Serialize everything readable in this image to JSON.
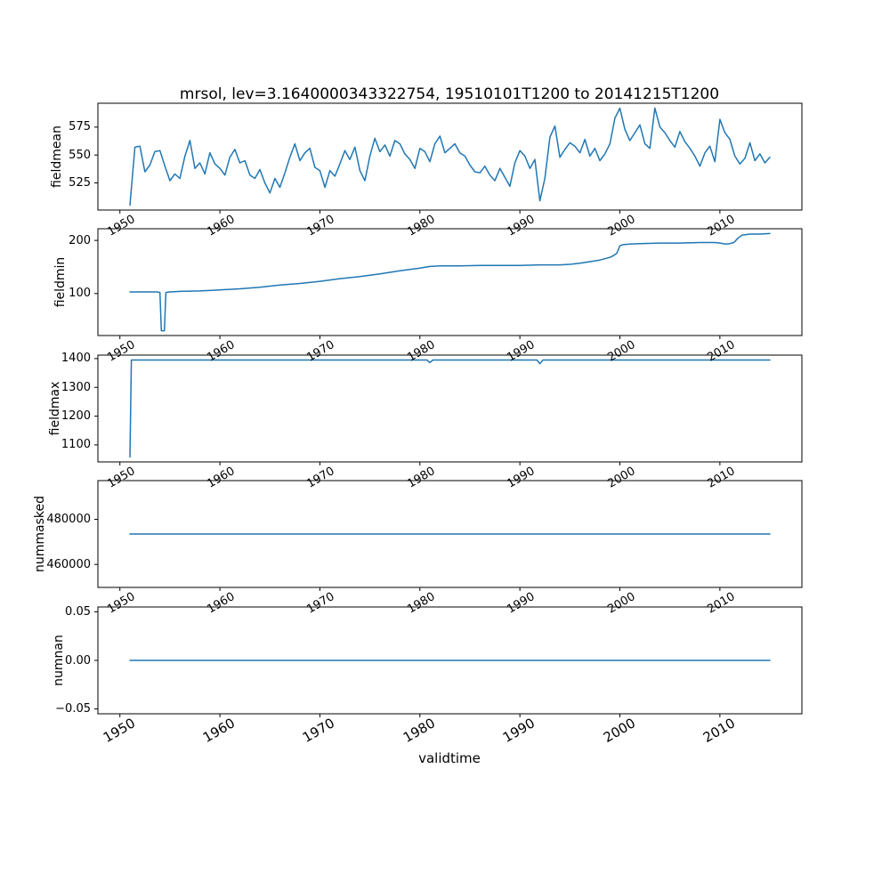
{
  "figure": {
    "title": "mrsol, lev=3.1640000343322754, 19510101T1200 to 20141215T1200",
    "xlabel": "validtime",
    "line_color": "#1f77b4",
    "axis_color": "#000000",
    "background": "#ffffff"
  },
  "chart_data": [
    {
      "type": "line",
      "ylabel": "fieldmean",
      "x_start": 1951.0,
      "x_step": 0.5,
      "y": [
        505,
        557,
        558,
        535,
        541,
        553,
        554,
        540,
        527,
        533,
        529,
        549,
        563,
        538,
        543,
        533,
        552,
        542,
        538,
        532,
        548,
        555,
        543,
        545,
        532,
        529,
        537,
        525,
        516,
        529,
        521,
        534,
        548,
        560,
        545,
        552,
        556,
        539,
        536,
        521,
        536,
        531,
        542,
        554,
        546,
        557,
        536,
        527,
        549,
        565,
        553,
        559,
        549,
        563,
        560,
        551,
        546,
        538,
        556,
        553,
        544,
        560,
        567,
        552,
        556,
        560,
        552,
        549,
        541,
        535,
        534,
        540,
        532,
        527,
        538,
        530,
        522,
        543,
        554,
        549,
        538,
        546,
        509,
        529,
        566,
        576,
        548,
        555,
        561,
        558,
        552,
        564,
        549,
        556,
        545,
        551,
        560,
        583,
        592,
        573,
        563,
        570,
        577,
        560,
        556,
        592,
        575,
        570,
        563,
        557,
        571,
        562,
        556,
        549,
        540,
        552,
        558,
        544,
        582,
        570,
        564,
        549,
        542,
        547,
        561,
        545,
        551,
        543,
        548
      ],
      "xlim": [
        1947.8,
        2018.2
      ],
      "ylim": [
        500.7,
        596.4
      ],
      "xticks": [
        1950,
        1960,
        1970,
        1980,
        1990,
        2000,
        2010
      ],
      "xtick_labels": [
        "1950",
        "1960",
        "1970",
        "1980",
        "1990",
        "2000",
        "2010"
      ],
      "yticks": [
        525,
        550,
        575
      ],
      "ytick_labels": [
        "525",
        "550",
        "575"
      ],
      "legend": "none",
      "grid": false
    },
    {
      "type": "line",
      "ylabel": "fieldmin",
      "x": [
        1951,
        1953.7,
        1954.0,
        1954.15,
        1954.45,
        1954.6,
        1955,
        1956,
        1958,
        1960,
        1962,
        1964,
        1966,
        1968,
        1970,
        1972,
        1974,
        1976,
        1978,
        1980,
        1981,
        1982,
        1984,
        1986,
        1988,
        1990,
        1992,
        1994,
        1995,
        1996,
        1997,
        1998,
        1999,
        1999.4,
        1999.7,
        2000,
        2000.3,
        2001,
        2002,
        2004,
        2006,
        2008,
        2009.5,
        2010,
        2010.6,
        2011,
        2011.4,
        2011.8,
        2012.2,
        2013,
        2014,
        2015
      ],
      "y": [
        103,
        103,
        102,
        30,
        30,
        102,
        103,
        104,
        105,
        107,
        109,
        112,
        116,
        119,
        123,
        128,
        132,
        137,
        143,
        148,
        151,
        152,
        152,
        153,
        153,
        153,
        154,
        154,
        155,
        157,
        160,
        163,
        168,
        172,
        176,
        190,
        192,
        193,
        194,
        195,
        195,
        196,
        196,
        195,
        193,
        194,
        196,
        204,
        210,
        212,
        212,
        213
      ],
      "xlim": [
        1947.8,
        2018.2
      ],
      "ylim": [
        21,
        222
      ],
      "xticks": [
        1950,
        1960,
        1970,
        1980,
        1990,
        2000,
        2010
      ],
      "xtick_labels": [
        "1950",
        "1960",
        "1970",
        "1980",
        "1990",
        "2000",
        "2010"
      ],
      "yticks": [
        100,
        200
      ],
      "ytick_labels": [
        "100",
        "200"
      ],
      "legend": "none",
      "grid": false
    },
    {
      "type": "line",
      "ylabel": "fieldmax",
      "x": [
        1951,
        1951.15,
        1951.3,
        1980.7,
        1981,
        1981.3,
        1991.7,
        1992,
        1992.3,
        2015
      ],
      "y": [
        1058,
        1395,
        1395,
        1395,
        1386,
        1395,
        1395,
        1382,
        1395,
        1395
      ],
      "xlim": [
        1947.8,
        2018.2
      ],
      "ylim": [
        1041,
        1412
      ],
      "xticks": [
        1950,
        1960,
        1970,
        1980,
        1990,
        2000,
        2010
      ],
      "xtick_labels": [
        "1950",
        "1960",
        "1970",
        "1980",
        "1990",
        "2000",
        "2010"
      ],
      "yticks": [
        1100,
        1200,
        1300,
        1400
      ],
      "ytick_labels": [
        "1100",
        "1200",
        "1300",
        "1400"
      ],
      "legend": "none",
      "grid": false
    },
    {
      "type": "line",
      "ylabel": "nummasked",
      "x": [
        1951,
        2015
      ],
      "y": [
        473500,
        473500
      ],
      "xlim": [
        1947.8,
        2018.2
      ],
      "ylim": [
        449825,
        497175
      ],
      "xticks": [
        1950,
        1960,
        1970,
        1980,
        1990,
        2000,
        2010
      ],
      "xtick_labels": [
        "1950",
        "1960",
        "1970",
        "1980",
        "1990",
        "2000",
        "2010"
      ],
      "yticks": [
        460000,
        480000
      ],
      "ytick_labels": [
        "460000",
        "480000"
      ],
      "legend": "none",
      "grid": false
    },
    {
      "type": "line",
      "ylabel": "numnan",
      "x": [
        1951,
        2015
      ],
      "y": [
        0,
        0
      ],
      "xlim": [
        1947.8,
        2018.2
      ],
      "ylim": [
        -0.055,
        0.055
      ],
      "xticks": [
        1950,
        1960,
        1970,
        1980,
        1990,
        2000,
        2010
      ],
      "xtick_labels": [
        "1950",
        "1960",
        "1970",
        "1980",
        "1990",
        "2000",
        "2010"
      ],
      "yticks": [
        -0.05,
        0.0,
        0.05
      ],
      "ytick_labels": [
        "−0.05",
        "0.00",
        "0.05"
      ],
      "legend": "none",
      "grid": false
    }
  ]
}
